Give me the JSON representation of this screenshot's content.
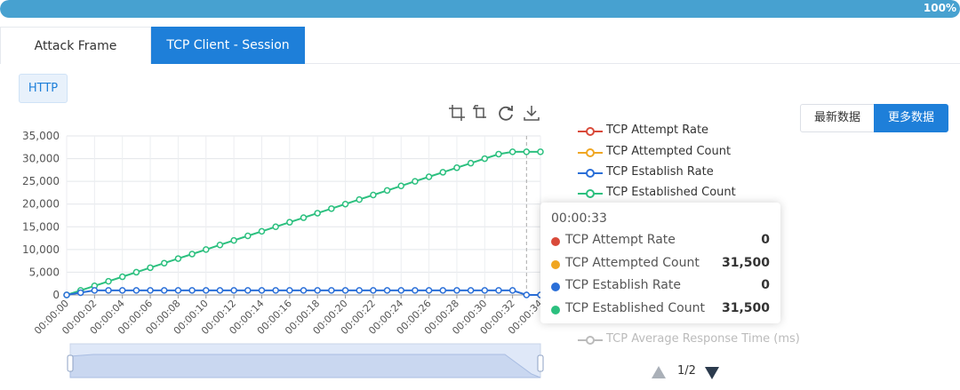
{
  "progress": {
    "value": 1.0,
    "label": "100%",
    "color": "#47a1d0"
  },
  "tabs": [
    {
      "label": "Attack Frame",
      "active": false
    },
    {
      "label": "TCP Client - Session",
      "active": true
    }
  ],
  "protocol_chip": "HTTP",
  "toolbox": [
    "zoom-icon",
    "zoom-reset-icon",
    "restore-icon",
    "download-icon"
  ],
  "buttons": {
    "latest": "最新数据",
    "more": "更多数据"
  },
  "legend": [
    {
      "name": "TCP Attempt Rate",
      "color": "#d94a3a"
    },
    {
      "name": "TCP Attempted Count",
      "color": "#f0a622"
    },
    {
      "name": "TCP Establish Rate",
      "color": "#2a6fd8"
    },
    {
      "name": "TCP Established Count",
      "color": "#2cc07f"
    },
    {
      "name": "TCP Average Response Time (ms)",
      "color": "#bbbbbb"
    }
  ],
  "pager": "1/2",
  "tooltip": {
    "time": "00:00:33",
    "rows": [
      {
        "name": "TCP Attempt Rate",
        "value": "0",
        "color": "#d94a3a"
      },
      {
        "name": "TCP Attempted Count",
        "value": "31,500",
        "color": "#f0a622"
      },
      {
        "name": "TCP Establish Rate",
        "value": "0",
        "color": "#2a6fd8"
      },
      {
        "name": "TCP Established Count",
        "value": "31,500",
        "color": "#2cc07f"
      }
    ]
  },
  "chart_data": {
    "type": "line",
    "ylim": [
      0,
      35000
    ],
    "yticks": [
      0,
      5000,
      10000,
      15000,
      20000,
      25000,
      30000,
      35000
    ],
    "ytick_labels": [
      "0",
      "5,000",
      "10,000",
      "15,000",
      "20,000",
      "25,000",
      "30,000",
      "35,000"
    ],
    "x": [
      "00:00:00",
      "00:00:01",
      "00:00:02",
      "00:00:03",
      "00:00:04",
      "00:00:05",
      "00:00:06",
      "00:00:07",
      "00:00:08",
      "00:00:09",
      "00:00:10",
      "00:00:11",
      "00:00:12",
      "00:00:13",
      "00:00:14",
      "00:00:15",
      "00:00:16",
      "00:00:17",
      "00:00:18",
      "00:00:19",
      "00:00:20",
      "00:00:21",
      "00:00:22",
      "00:00:23",
      "00:00:24",
      "00:00:25",
      "00:00:26",
      "00:00:27",
      "00:00:28",
      "00:00:29",
      "00:00:30",
      "00:00:31",
      "00:00:32",
      "00:00:33",
      "00:00:34"
    ],
    "xtick_labels": [
      "00:00:00",
      "00:00:02",
      "00:00:04",
      "00:00:06",
      "00:00:08",
      "00:00:10",
      "00:00:12",
      "00:00:14",
      "00:00:16",
      "00:00:18",
      "00:00:20",
      "00:00:22",
      "00:00:24",
      "00:00:26",
      "00:00:28",
      "00:00:30",
      "00:00:32",
      "00:00:34"
    ],
    "highlight_x": "00:00:33",
    "series": [
      {
        "name": "TCP Established Count",
        "color": "#2cc07f",
        "values": [
          0,
          1000,
          2000,
          3000,
          4000,
          5000,
          6000,
          7000,
          8000,
          9000,
          10000,
          11000,
          12000,
          13000,
          14000,
          15000,
          16000,
          17000,
          18000,
          19000,
          20000,
          21000,
          22000,
          23000,
          24000,
          25000,
          26000,
          27000,
          28000,
          29000,
          30000,
          31000,
          31500,
          31500,
          31500
        ]
      },
      {
        "name": "TCP Establish Rate",
        "color": "#2a6fd8",
        "values": [
          0,
          500,
          1000,
          1000,
          1000,
          1000,
          1000,
          1000,
          1000,
          1000,
          1000,
          1000,
          1000,
          1000,
          1000,
          1000,
          1000,
          1000,
          1000,
          1000,
          1000,
          1000,
          1000,
          1000,
          1000,
          1000,
          1000,
          1000,
          1000,
          1000,
          1000,
          1000,
          1000,
          0,
          0
        ]
      }
    ],
    "grid": true
  }
}
